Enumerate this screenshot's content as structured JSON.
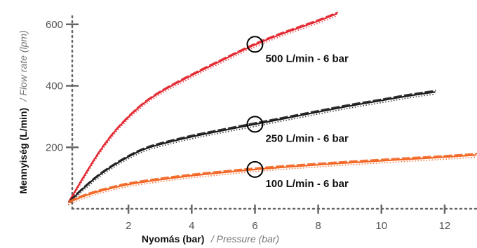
{
  "chart_data": {
    "type": "line",
    "xlabel": "Nyomás (bar)",
    "xlabel_translation": "/ Pressure (bar)",
    "ylabel": "Mennyiség (L/min)",
    "ylabel_translation": "/ Flow rate (lpm)",
    "x_ticks": [
      "2",
      "4",
      "6",
      "8",
      "10",
      "12"
    ],
    "y_ticks": [
      "200",
      "400",
      "600"
    ],
    "xlim": [
      0,
      13
    ],
    "ylim": [
      0,
      620
    ],
    "grid": false,
    "series": [
      {
        "name": "500 L/min - 6 bar",
        "color": "#e3262f",
        "x": [
          0.1,
          0.5,
          1,
          1.5,
          2,
          2.5,
          3,
          4,
          5,
          6,
          7,
          8,
          8.6
        ],
        "y": [
          20,
          90,
          175,
          245,
          300,
          345,
          380,
          435,
          485,
          535,
          575,
          610,
          635
        ]
      },
      {
        "name": "250 L/min - 6 bar",
        "color": "#1c1c1c",
        "x": [
          0.1,
          0.5,
          1,
          1.5,
          2,
          2.5,
          3,
          4,
          5,
          6,
          7,
          8,
          9,
          10,
          11,
          11.7
        ],
        "y": [
          20,
          60,
          105,
          140,
          170,
          195,
          210,
          235,
          255,
          275,
          295,
          315,
          335,
          352,
          370,
          380
        ]
      },
      {
        "name": "100 L/min - 6 bar",
        "color": "#f26522",
        "x": [
          0.1,
          0.5,
          1,
          1.5,
          2,
          3,
          4,
          5,
          6,
          7,
          8,
          9,
          10,
          11,
          12,
          13
        ],
        "y": [
          20,
          38,
          55,
          68,
          80,
          95,
          108,
          118,
          128,
          136,
          143,
          150,
          156,
          162,
          168,
          175
        ]
      }
    ],
    "annotations": [
      {
        "label": "500 L/min - 6 bar",
        "x": 6,
        "y": 535
      },
      {
        "label": "250 L/min - 6 bar",
        "x": 6,
        "y": 275
      },
      {
        "label": "100 L/min - 6 bar",
        "x": 6,
        "y": 128
      }
    ]
  }
}
